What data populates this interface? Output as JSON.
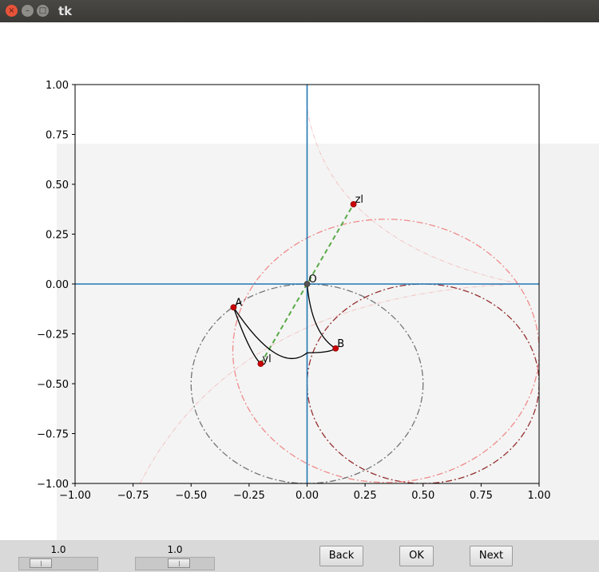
{
  "window": {
    "title": "tk",
    "close_glyph": "×",
    "minimize_glyph": "–",
    "maximize_glyph": "□"
  },
  "controls": {
    "slider1_value": "1.0",
    "slider2_value": "1.0",
    "back_label": "Back",
    "ok_label": "OK",
    "next_label": "Next"
  },
  "chart_data": {
    "type": "scatter",
    "title": "",
    "xlabel": "",
    "ylabel": "",
    "xlim": [
      -1.0,
      1.0
    ],
    "ylim": [
      -1.0,
      1.0
    ],
    "x_ticks": [
      "−1.00",
      "−0.75",
      "−0.50",
      "−0.25",
      "0.00",
      "0.25",
      "0.50",
      "0.75",
      "1.00"
    ],
    "y_ticks": [
      "1.00",
      "0.75",
      "0.50",
      "0.25",
      "0.00",
      "−0.25",
      "−0.50",
      "−0.75",
      "−1.00"
    ],
    "x_tick_values": [
      -1.0,
      -0.75,
      -0.5,
      -0.25,
      0.0,
      0.25,
      0.5,
      0.75,
      1.0
    ],
    "y_tick_values": [
      1.0,
      0.75,
      0.5,
      0.25,
      0.0,
      -0.25,
      -0.5,
      -0.75,
      -1.0
    ],
    "points": [
      {
        "label": "O",
        "x": 0.0,
        "y": 0.0
      },
      {
        "label": "zl",
        "x": 0.2,
        "y": 0.4
      },
      {
        "label": "A",
        "x": -0.317,
        "y": -0.117
      },
      {
        "label": "B",
        "x": 0.123,
        "y": -0.323
      },
      {
        "label": "yl",
        "x": -0.2,
        "y": -0.4
      }
    ],
    "circles": [
      {
        "cx": 0.5,
        "cy": -0.5,
        "r": 0.5,
        "color": "#8b1a1a",
        "style": "dashdot",
        "opacity": 0.9
      },
      {
        "cx": 0.34,
        "cy": -0.335,
        "r": 0.66,
        "color": "#f08080",
        "style": "dashdot",
        "opacity": 0.9
      },
      {
        "cx": 0.0,
        "cy": -0.5,
        "r": 0.5,
        "color": "#555555",
        "style": "dashdot",
        "opacity": 0.8
      }
    ],
    "colors": {
      "axis_lines": "#1f77b4",
      "points": "#cc0000",
      "dashed_line": "#5aaa4a",
      "arc": "#000000"
    }
  }
}
